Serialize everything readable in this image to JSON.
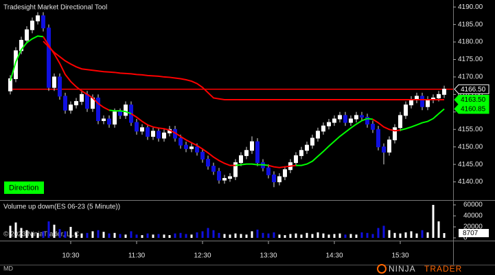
{
  "chart_data": {
    "type": "candlestick",
    "title": "Tradesight Market Directional Tool",
    "badge": "Direction",
    "categories": [
      null,
      null,
      null,
      null,
      null,
      null,
      null,
      null,
      null,
      null,
      null,
      "10:30",
      null,
      null,
      null,
      null,
      null,
      null,
      null,
      null,
      null,
      null,
      null,
      "11:30",
      null,
      null,
      null,
      null,
      null,
      null,
      null,
      null,
      null,
      null,
      null,
      "12:30",
      null,
      null,
      null,
      null,
      null,
      null,
      null,
      null,
      null,
      null,
      null,
      "13:30",
      null,
      null,
      null,
      null,
      null,
      null,
      null,
      null,
      null,
      null,
      null,
      "14:30",
      null,
      null,
      null,
      null,
      null,
      null,
      null,
      null,
      null,
      null,
      null,
      "15:30",
      null,
      null,
      null,
      null,
      null,
      null,
      null,
      null
    ],
    "open": [
      4166,
      4169.5,
      4177.5,
      4180.5,
      4183.5,
      4186,
      4187.5,
      4184,
      4167,
      4170,
      4164.5,
      4160.5,
      4162,
      4163,
      4165,
      4161,
      4164,
      4157.5,
      4158,
      4156.5,
      4160,
      4159,
      4162,
      4157,
      4154.5,
      4155.5,
      4153,
      4154.5,
      4152.5,
      4154,
      4155,
      4152.5,
      4150.5,
      4149.5,
      4150,
      4148.5,
      4146.5,
      4144.5,
      4143,
      4140.5,
      4141,
      4141.5,
      4145.5,
      4147.5,
      4149,
      4151.5,
      4145.5,
      4144,
      4142,
      4140,
      4141.5,
      4143.5,
      4145.5,
      4147.5,
      4149,
      4150.5,
      4152.5,
      4154.5,
      4156,
      4157,
      4158,
      4159,
      4157,
      4158,
      4159,
      4158.5,
      4156.5,
      4155,
      4150,
      4148.5,
      4152,
      4155.5,
      4159,
      4162,
      4163.5,
      4164.5,
      4161.5,
      4163.5,
      4164,
      4165
    ],
    "high": [
      4170.5,
      4178.5,
      4181.5,
      4184.5,
      4187,
      4188.5,
      4188.5,
      4185,
      4171,
      4171,
      4165.5,
      4163,
      4164,
      4166,
      4166,
      4165,
      4165,
      4159,
      4159,
      4161,
      4161,
      4163,
      4163,
      4158,
      4156.5,
      4156.5,
      4155.5,
      4155.5,
      4155,
      4156,
      4156,
      4153.5,
      4151.5,
      4151,
      4151,
      4149.5,
      4147.5,
      4145.5,
      4144,
      4142,
      4142.5,
      4146.5,
      4148.5,
      4150,
      4153,
      4152.5,
      4146.5,
      4145,
      4143,
      4142.5,
      4144.5,
      4146.5,
      4148.5,
      4150,
      4151.5,
      4153.5,
      4155.5,
      4157,
      4158,
      4159,
      4160,
      4160,
      4159,
      4160,
      4160,
      4159.5,
      4157.5,
      4156,
      4151,
      4153,
      4156.5,
      4160,
      4163,
      4164.5,
      4165.5,
      4165.5,
      4164.5,
      4165,
      4166,
      4167.5
    ],
    "low": [
      4165,
      4168.5,
      4176.5,
      4179.5,
      4182.5,
      4185,
      4183,
      4166,
      4166,
      4163.5,
      4159.5,
      4159.5,
      4161,
      4162,
      4160,
      4160,
      4156.5,
      4156.5,
      4155.5,
      4155.5,
      4158,
      4158,
      4156,
      4153.5,
      4153.5,
      4152,
      4152,
      4151.5,
      4151.5,
      4153,
      4151.5,
      4149.5,
      4148.5,
      4148.5,
      4147.5,
      4145.5,
      4143.5,
      4142,
      4139.5,
      4139.5,
      4140,
      4140.5,
      4144.5,
      4146.5,
      4148,
      4144.5,
      4143,
      4141,
      4138.5,
      4139,
      4140.5,
      4142.5,
      4144.5,
      4146.5,
      4148,
      4149.5,
      4151.5,
      4153.5,
      4155,
      4156,
      4157,
      4156,
      4156,
      4157,
      4157.5,
      4155.5,
      4154,
      4149,
      4145,
      4147.5,
      4151,
      4154.5,
      4158,
      4161,
      4162.5,
      4160.5,
      4160.5,
      4162.5,
      4163,
      4164
    ],
    "close": [
      4169.5,
      4177.5,
      4180.5,
      4183.5,
      4186,
      4187.5,
      4184,
      4167,
      4170,
      4164.5,
      4160.5,
      4162,
      4163,
      4165,
      4161,
      4164,
      4157.5,
      4158,
      4156.5,
      4160,
      4159,
      4162,
      4157,
      4154.5,
      4155.5,
      4153,
      4154.5,
      4152.5,
      4154,
      4155,
      4152.5,
      4150.5,
      4149.5,
      4150,
      4148.5,
      4146.5,
      4144.5,
      4143,
      4140.5,
      4141,
      4141.5,
      4145.5,
      4147.5,
      4149,
      4151.5,
      4145.5,
      4144,
      4142,
      4140,
      4141.5,
      4143.5,
      4145.5,
      4147.5,
      4149,
      4150.5,
      4152.5,
      4154.5,
      4156,
      4157,
      4158,
      4159,
      4157,
      4158,
      4159,
      4158.5,
      4156.5,
      4155,
      4150,
      4148.5,
      4152,
      4155.5,
      4159,
      4162,
      4163.5,
      4164.5,
      4161.5,
      4163.5,
      4164,
      4165,
      4166.5
    ],
    "up_color": "#ffffff",
    "down_color": "#1010e0",
    "series": [
      {
        "color": "#00ff00",
        "values": [
          4168.9,
          4174.3,
          4177.8,
          4179.8,
          4180.9,
          4181.7,
          4181.5,
          null,
          null,
          null,
          null,
          null,
          null,
          null,
          null,
          null,
          null,
          null,
          4160.5,
          4160.3,
          4160.3,
          4160.1,
          4159.5,
          null,
          null,
          null,
          null,
          null,
          null,
          null,
          null,
          null,
          null,
          null,
          null,
          null,
          null,
          null,
          null,
          null,
          null,
          4144.7,
          4144.9,
          4145.1,
          4145.1,
          4144.9,
          4144.9,
          4144.7,
          null,
          null,
          null,
          null,
          4144.7,
          4144.7,
          4145.1,
          4145.9,
          4147.3,
          4148.7,
          4150.2,
          4151.6,
          4153,
          4154.2,
          4155.4,
          4156.5,
          4157.5,
          4158.1,
          4157.9,
          null,
          null,
          null,
          null,
          4154.8,
          4155.2,
          4155.7,
          4156.3,
          4156.9,
          4157.3,
          4158.1,
          4159.5,
          4160.85
        ]
      },
      {
        "color": "#ff0000",
        "values": [
          null,
          null,
          null,
          null,
          null,
          null,
          4181.5,
          4179,
          4176.6,
          4173.9,
          4170.7,
          4168.7,
          4167.2,
          4166,
          4165,
          4164,
          4162.4,
          4161.3,
          4160.5,
          null,
          null,
          null,
          4159.5,
          4158.5,
          4157.3,
          4156.3,
          4155.7,
          4155.4,
          4155.2,
          4154.8,
          4154,
          4153,
          4152,
          4151.2,
          4150.4,
          4149.4,
          4148.3,
          4147.1,
          4146.1,
          4145.3,
          4144.7,
          4144.7,
          null,
          null,
          null,
          null,
          null,
          4144.7,
          4144.3,
          4144.1,
          4144.3,
          4144.5,
          4144.7,
          null,
          null,
          null,
          null,
          null,
          null,
          null,
          null,
          null,
          null,
          null,
          null,
          null,
          4157.9,
          4156.9,
          4155.7,
          4155,
          4154.6,
          4154.8,
          null,
          null,
          null,
          null,
          null,
          null,
          null,
          null
        ]
      },
      {
        "color": "#ff0000",
        "values": [
          null,
          null,
          null,
          null,
          null,
          null,
          4180.2,
          4178.6,
          4177,
          4175.8,
          4174.6,
          4173.7,
          4172.9,
          4172.3,
          4172.1,
          4171.9,
          4171.7,
          4171.5,
          4171.4,
          4171.3,
          4171.1,
          4171,
          4170.9,
          4170.7,
          4170.6,
          4170.4,
          4170.3,
          4170.2,
          4170,
          4169.9,
          4169.7,
          4169.5,
          4169.2,
          4168.8,
          4168.1,
          4167,
          4165.5,
          4164,
          4163.75,
          4163.5,
          4163.5,
          4163.5,
          4163.5,
          4163.5,
          4163.5,
          4163.5,
          4163.5,
          4163.5,
          4163.5,
          4163.5,
          4163.5,
          4163.5,
          4163.5,
          4163.5,
          4163.5,
          4163.5,
          4163.5,
          4163.5,
          4163.5,
          4163.5,
          4163.5,
          4163.5,
          4163.5,
          4163.5,
          4163.5,
          4163.5,
          4163.5,
          4163.5,
          4163.5,
          4163.5,
          4163.5,
          4163.5,
          4163.5,
          4163.5,
          4163.5,
          4163.5,
          4163.5,
          4163.5,
          4163.5,
          4163.5
        ]
      }
    ],
    "price_line": {
      "value": 4166.5,
      "color": "#ff0000"
    },
    "markers": [
      {
        "value": 4166.5,
        "label": "4166.50",
        "color": "#000000"
      },
      {
        "value": 4163.5,
        "label": "4163.50",
        "color": "#00ff00"
      },
      {
        "value": 4160.85,
        "label": "4160.85",
        "color": "#00ff00"
      }
    ],
    "ylim": [
      4135,
      4192
    ],
    "yticks": [
      {
        "value": 4140,
        "label": "4140.00"
      },
      {
        "value": 4145,
        "label": "4145.00"
      },
      {
        "value": 4150,
        "label": "4150.00"
      },
      {
        "value": 4155,
        "label": "4155.00"
      },
      {
        "value": 4160,
        "label": "4160.00"
      },
      {
        "value": 4165,
        "label": "4165.00"
      },
      {
        "value": 4170,
        "label": "4170.00"
      },
      {
        "value": 4175,
        "label": "4175.00"
      },
      {
        "value": 4180,
        "label": "4180.00"
      },
      {
        "value": 4185,
        "label": "4185.00"
      },
      {
        "value": 4190,
        "label": "4190.00"
      }
    ],
    "volume": {
      "title": "Volume up down(ES 06-23 (5 Minute))",
      "values": [
        22000,
        28000,
        18000,
        14000,
        10000,
        9000,
        12000,
        30000,
        24000,
        16000,
        12000,
        20000,
        10000,
        8000,
        9000,
        12000,
        14000,
        11000,
        8000,
        9000,
        7000,
        6000,
        12000,
        6000,
        5000,
        8000,
        6000,
        7000,
        6000,
        5000,
        8000,
        9000,
        7000,
        6000,
        10000,
        12000,
        18000,
        14000,
        9000,
        7000,
        6000,
        8000,
        7000,
        6000,
        12000,
        15000,
        9000,
        8000,
        10000,
        6000,
        5000,
        7000,
        8000,
        6000,
        9000,
        7000,
        10000,
        8000,
        6000,
        7000,
        8000,
        6000,
        7000,
        6000,
        10000,
        9000,
        7000,
        18000,
        22000,
        14000,
        9000,
        8000,
        10000,
        12000,
        8000,
        14000,
        10000,
        60000,
        30000,
        8707
      ],
      "ylim": [
        0,
        67500
      ],
      "yticks": [
        0,
        20000,
        40000,
        60000
      ]
    },
    "copyright": "© 2023 NinjaTrader, LLC",
    "footer_left": "MD",
    "logo": [
      "NINJA",
      "TRADER"
    ]
  }
}
